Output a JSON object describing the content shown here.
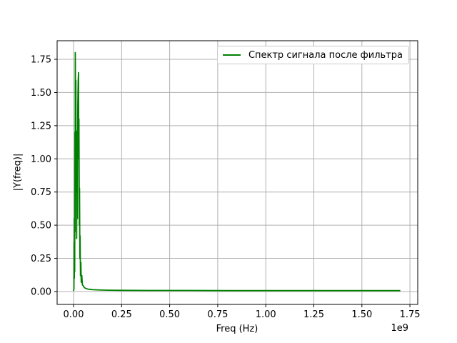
{
  "chart_data": {
    "type": "line",
    "title": "",
    "xlabel": "Freq (Hz)",
    "ylabel": "|Y(freq)|",
    "x_offset_text": "1e9",
    "x_units_multiplier": 1000000000.0,
    "xlim": [
      -0.0855,
      1.7905
    ],
    "ylim": [
      -0.097,
      1.89
    ],
    "x_tick_values": [
      0.0,
      0.25,
      0.5,
      0.75,
      1.0,
      1.25,
      1.5,
      1.75
    ],
    "x_tick_labels": [
      "0.00",
      "0.25",
      "0.50",
      "0.75",
      "1.00",
      "1.25",
      "1.50",
      "1.75"
    ],
    "y_tick_values": [
      0.0,
      0.25,
      0.5,
      0.75,
      1.0,
      1.25,
      1.5,
      1.75
    ],
    "y_tick_labels": [
      "0.00",
      "0.25",
      "0.50",
      "0.75",
      "1.00",
      "1.25",
      "1.50",
      "1.75"
    ],
    "grid": true,
    "legend_position": "upper right",
    "colors": {
      "line": "#008000",
      "grid": "#b0b0b0",
      "spine": "#000000",
      "legend_border": "#cccccc",
      "background": "#ffffff"
    },
    "series": [
      {
        "name": "Спектр сигнала после фильтра",
        "color": "#008000",
        "peaks": [
          [
            0.009,
            1.8
          ],
          [
            0.026,
            1.65
          ]
        ],
        "points": [
          [
            0.0,
            0.005
          ],
          [
            0.002,
            0.02
          ],
          [
            0.003,
            0.37
          ],
          [
            0.004,
            0.1
          ],
          [
            0.005,
            0.55
          ],
          [
            0.006,
            0.15
          ],
          [
            0.007,
            1.2
          ],
          [
            0.008,
            0.45
          ],
          [
            0.009,
            1.8
          ],
          [
            0.011,
            1.3
          ],
          [
            0.012,
            1.59
          ],
          [
            0.013,
            0.75
          ],
          [
            0.015,
            1.1
          ],
          [
            0.016,
            0.4
          ],
          [
            0.017,
            0.85
          ],
          [
            0.019,
            1.21
          ],
          [
            0.02,
            0.55
          ],
          [
            0.022,
            1.4
          ],
          [
            0.024,
            1.58
          ],
          [
            0.026,
            1.65
          ],
          [
            0.027,
            1.0
          ],
          [
            0.028,
            1.3
          ],
          [
            0.03,
            0.5
          ],
          [
            0.031,
            0.78
          ],
          [
            0.033,
            0.25
          ],
          [
            0.034,
            0.42
          ],
          [
            0.036,
            0.12
          ],
          [
            0.038,
            0.22
          ],
          [
            0.04,
            0.07
          ],
          [
            0.043,
            0.12
          ],
          [
            0.046,
            0.05
          ],
          [
            0.05,
            0.045
          ],
          [
            0.055,
            0.032
          ],
          [
            0.06,
            0.026
          ],
          [
            0.07,
            0.02
          ],
          [
            0.08,
            0.017
          ],
          [
            0.1,
            0.014
          ],
          [
            0.13,
            0.012
          ],
          [
            0.18,
            0.01
          ],
          [
            0.25,
            0.009
          ],
          [
            0.4,
            0.008
          ],
          [
            0.6,
            0.008
          ],
          [
            0.8,
            0.007
          ],
          [
            1.0,
            0.007
          ],
          [
            1.2,
            0.007
          ],
          [
            1.4,
            0.007
          ],
          [
            1.55,
            0.007
          ],
          [
            1.7,
            0.007
          ]
        ]
      }
    ]
  },
  "legend": {
    "label": "Спектр сигнала после фильтра"
  }
}
